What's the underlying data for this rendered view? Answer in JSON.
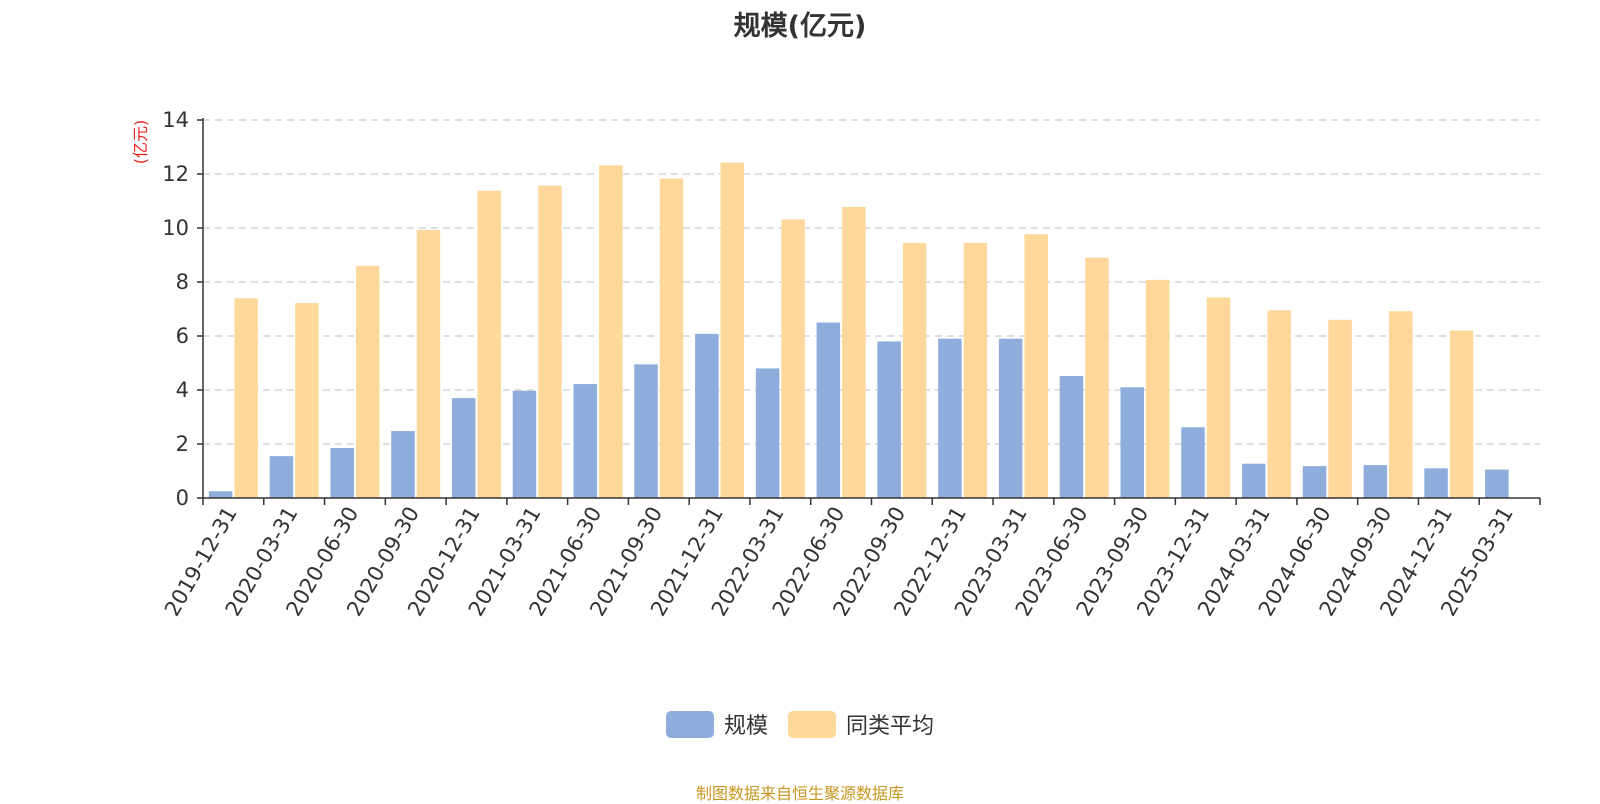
{
  "chart_data": {
    "type": "bar",
    "title": "规模(亿元)",
    "ylabel": "(亿元)",
    "xlabel": "",
    "ylim": [
      0,
      14
    ],
    "yticks": [
      "0",
      "2",
      "4",
      "6",
      "8",
      "10",
      "12",
      "14"
    ],
    "grid": true,
    "legend_position": "bottom",
    "categories": [
      "2019-12-31",
      "2020-03-31",
      "2020-06-30",
      "2020-09-30",
      "2020-12-31",
      "2021-03-31",
      "2021-06-30",
      "2021-09-30",
      "2021-12-31",
      "2022-03-31",
      "2022-06-30",
      "2022-09-30",
      "2022-12-31",
      "2023-03-31",
      "2023-06-30",
      "2023-09-30",
      "2023-12-31",
      "2024-03-31",
      "2024-06-30",
      "2024-09-30",
      "2024-12-31",
      "2025-03-31"
    ],
    "series": [
      {
        "name": "规模",
        "color": "#8eaddb",
        "values": [
          0.25,
          1.55,
          1.85,
          2.48,
          3.7,
          3.97,
          4.22,
          4.95,
          6.08,
          4.8,
          6.5,
          5.8,
          5.9,
          5.9,
          4.52,
          4.1,
          2.62,
          1.27,
          1.18,
          1.22,
          1.1,
          1.05
        ]
      },
      {
        "name": "同类平均",
        "color": "#fed89b",
        "values": [
          7.4,
          7.22,
          8.6,
          9.93,
          11.38,
          11.57,
          12.32,
          11.83,
          12.42,
          10.32,
          10.78,
          9.45,
          9.45,
          9.77,
          8.9,
          8.08,
          7.43,
          6.95,
          6.6,
          6.92,
          6.2,
          null
        ]
      }
    ]
  },
  "source_note": "制图数据来自恒生聚源数据库"
}
